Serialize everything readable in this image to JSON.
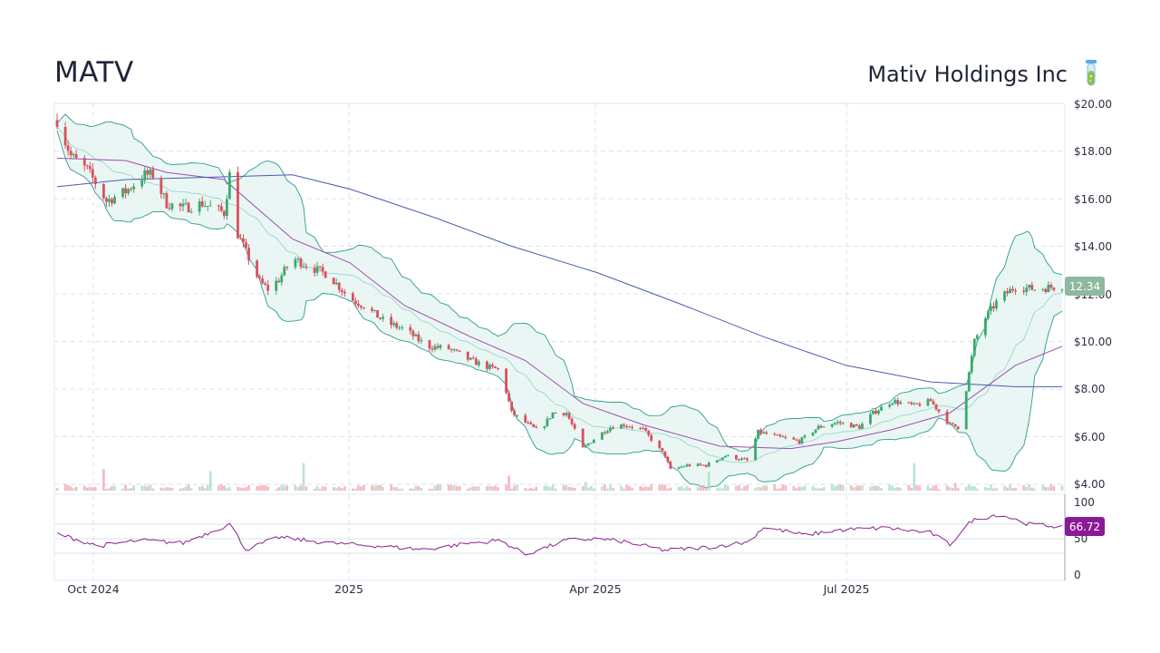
{
  "header": {
    "ticker": "MATV",
    "company": "Mativ Holdings Inc",
    "icon": "test-tube-icon"
  },
  "colors": {
    "up": "#3aaa6e",
    "down": "#d9505f",
    "band_fill": "#e6f4f1",
    "band_line": "#2a9d8a",
    "band_mid": "#8fd4c4",
    "ma_short": "#9a4fb0",
    "ma_long": "#4a5db0",
    "rsi_line": "#8b1f8f",
    "price_badge": "#8fb8a0",
    "rsi_badge": "#8b1a96",
    "grid": "#d8e2ea"
  },
  "chart_data": [
    {
      "type": "candlestick",
      "title": "",
      "x_ticks": [
        "Oct 2024",
        "2025",
        "Apr 2025",
        "Jul 2025"
      ],
      "y_ticks": [
        "$20.00",
        "$18.00",
        "$16.00",
        "$14.00",
        "$12.00",
        "$10.00",
        "$8.00",
        "$6.00",
        "$4.00"
      ],
      "ylim": [
        4,
        20
      ],
      "last_price": "12.34",
      "price_path": [
        [
          "2024-09-20",
          19.3
        ],
        [
          "2024-09-25",
          17.8
        ],
        [
          "2024-10-01",
          17.2
        ],
        [
          "2024-10-05",
          16.5
        ],
        [
          "2024-10-08",
          15.9
        ],
        [
          "2024-10-15",
          16.3
        ],
        [
          "2024-10-22",
          17.0
        ],
        [
          "2024-10-25",
          17.0
        ],
        [
          "2024-10-30",
          15.8
        ],
        [
          "2024-11-05",
          15.6
        ],
        [
          "2024-11-12",
          15.8
        ],
        [
          "2024-11-20",
          15.4
        ],
        [
          "2024-11-22",
          17.0
        ],
        [
          "2024-11-25",
          14.5
        ],
        [
          "2024-11-29",
          13.5
        ],
        [
          "2024-12-03",
          12.5
        ],
        [
          "2024-12-06",
          12.2
        ],
        [
          "2024-12-10",
          12.6
        ],
        [
          "2024-12-15",
          13.5
        ],
        [
          "2024-12-20",
          13.2
        ],
        [
          "2024-12-28",
          12.8
        ],
        [
          "2025-01-05",
          11.8
        ],
        [
          "2025-01-10",
          11.5
        ],
        [
          "2025-01-18",
          10.8
        ],
        [
          "2025-01-25",
          10.5
        ],
        [
          "2025-02-02",
          9.8
        ],
        [
          "2025-02-10",
          9.7
        ],
        [
          "2025-02-18",
          9.2
        ],
        [
          "2025-02-25",
          8.9
        ],
        [
          "2025-03-01",
          8.8
        ],
        [
          "2025-03-05",
          7.0
        ],
        [
          "2025-03-10",
          6.6
        ],
        [
          "2025-03-15",
          6.2
        ],
        [
          "2025-03-20",
          7.0
        ],
        [
          "2025-03-25",
          7.0
        ],
        [
          "2025-03-31",
          5.5
        ],
        [
          "2025-04-05",
          6.0
        ],
        [
          "2025-04-10",
          6.4
        ],
        [
          "2025-04-15",
          6.5
        ],
        [
          "2025-04-22",
          6.3
        ],
        [
          "2025-04-30",
          5.2
        ],
        [
          "2025-05-02",
          4.6
        ],
        [
          "2025-05-08",
          4.8
        ],
        [
          "2025-05-15",
          4.8
        ],
        [
          "2025-05-22",
          5.2
        ],
        [
          "2025-05-30",
          5.0
        ],
        [
          "2025-06-03",
          6.2
        ],
        [
          "2025-06-10",
          6.0
        ],
        [
          "2025-06-18",
          5.8
        ],
        [
          "2025-06-25",
          6.4
        ],
        [
          "2025-07-02",
          6.6
        ],
        [
          "2025-07-10",
          6.4
        ],
        [
          "2025-07-15",
          7.0
        ],
        [
          "2025-07-22",
          7.5
        ],
        [
          "2025-07-30",
          7.3
        ],
        [
          "2025-08-05",
          7.5
        ],
        [
          "2025-08-12",
          6.5
        ],
        [
          "2025-08-15",
          6.4
        ],
        [
          "2025-08-18",
          8.0
        ],
        [
          "2025-08-21",
          10.0
        ],
        [
          "2025-08-25",
          11.0
        ],
        [
          "2025-08-30",
          11.8
        ],
        [
          "2025-09-05",
          12.3
        ],
        [
          "2025-09-12",
          12.2
        ],
        [
          "2025-09-22",
          12.34
        ]
      ],
      "series": [
        {
          "name": "",
          "kind": "sma_short",
          "points": [
            [
              "2024-09-20",
              17.7
            ],
            [
              "2024-10-15",
              17.6
            ],
            [
              "2024-10-30",
              17.1
            ],
            [
              "2024-11-20",
              16.8
            ],
            [
              "2024-12-15",
              14.3
            ],
            [
              "2025-01-05",
              13.3
            ],
            [
              "2025-01-25",
              11.5
            ],
            [
              "2025-02-18",
              10.2
            ],
            [
              "2025-03-10",
              9.2
            ],
            [
              "2025-03-31",
              7.4
            ],
            [
              "2025-04-22",
              6.5
            ],
            [
              "2025-05-20",
              5.6
            ],
            [
              "2025-06-15",
              5.5
            ],
            [
              "2025-07-02",
              5.8
            ],
            [
              "2025-07-22",
              6.3
            ],
            [
              "2025-08-12",
              7.0
            ],
            [
              "2025-09-05",
              9.0
            ],
            [
              "2025-09-22",
              9.8
            ]
          ]
        },
        {
          "name": "",
          "kind": "sma_long",
          "points": [
            [
              "2024-09-20",
              16.5
            ],
            [
              "2024-10-15",
              16.8
            ],
            [
              "2024-11-15",
              16.9
            ],
            [
              "2024-12-15",
              17.0
            ],
            [
              "2025-01-05",
              16.4
            ],
            [
              "2025-02-05",
              15.2
            ],
            [
              "2025-03-05",
              14.0
            ],
            [
              "2025-04-05",
              12.9
            ],
            [
              "2025-05-05",
              11.6
            ],
            [
              "2025-06-05",
              10.2
            ],
            [
              "2025-07-05",
              9.0
            ],
            [
              "2025-08-05",
              8.3
            ],
            [
              "2025-09-05",
              8.1
            ],
            [
              "2025-09-22",
              8.1
            ]
          ]
        }
      ]
    },
    {
      "type": "line",
      "title": "",
      "y_ticks": [
        "100",
        "50",
        "0"
      ],
      "ylim": [
        0,
        100
      ],
      "last_value": "66.72",
      "series": [
        {
          "name": "",
          "points": [
            [
              "2024-09-20",
              57
            ],
            [
              "2024-10-05",
              40
            ],
            [
              "2024-10-20",
              48
            ],
            [
              "2024-11-05",
              44
            ],
            [
              "2024-11-22",
              70
            ],
            [
              "2024-11-28",
              35
            ],
            [
              "2024-12-10",
              52
            ],
            [
              "2024-12-28",
              44
            ],
            [
              "2025-01-15",
              40
            ],
            [
              "2025-02-01",
              35
            ],
            [
              "2025-02-18",
              44
            ],
            [
              "2025-03-01",
              48
            ],
            [
              "2025-03-10",
              28
            ],
            [
              "2025-03-25",
              48
            ],
            [
              "2025-04-05",
              50
            ],
            [
              "2025-04-15",
              46
            ],
            [
              "2025-04-30",
              34
            ],
            [
              "2025-05-15",
              38
            ],
            [
              "2025-05-30",
              45
            ],
            [
              "2025-06-05",
              66
            ],
            [
              "2025-06-20",
              55
            ],
            [
              "2025-07-02",
              62
            ],
            [
              "2025-07-20",
              65
            ],
            [
              "2025-08-05",
              58
            ],
            [
              "2025-08-12",
              42
            ],
            [
              "2025-08-20",
              75
            ],
            [
              "2025-08-30",
              84
            ],
            [
              "2025-09-10",
              70
            ],
            [
              "2025-09-22",
              66.72
            ]
          ]
        }
      ]
    }
  ]
}
